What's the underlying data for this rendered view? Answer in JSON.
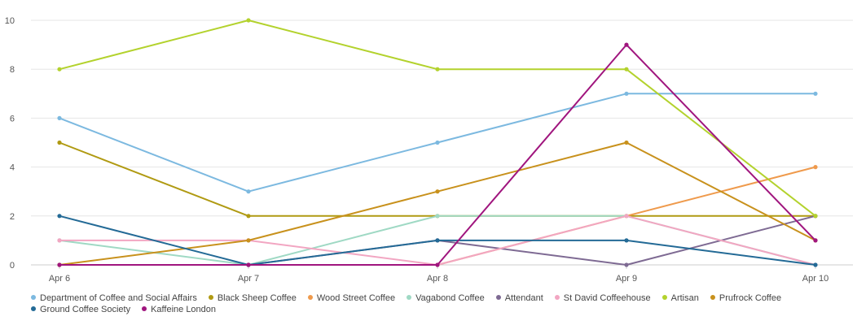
{
  "chart_data": {
    "type": "line",
    "title": "",
    "xlabel": "",
    "ylabel": "",
    "categories": [
      "Apr 6",
      "Apr 7",
      "Apr 8",
      "Apr 9",
      "Apr 10"
    ],
    "ylim": [
      0,
      10
    ],
    "yticks": [
      0,
      2,
      4,
      6,
      8,
      10
    ],
    "grid": true,
    "legend_position": "bottom",
    "series": [
      {
        "name": "Department of Coffee and Social Affairs",
        "color": "#7cb9e0",
        "values": [
          6,
          3,
          5,
          7,
          7
        ]
      },
      {
        "name": "Black Sheep Coffee",
        "color": "#b09a12",
        "values": [
          5,
          2,
          2,
          2,
          2
        ]
      },
      {
        "name": "Wood Street Coffee",
        "color": "#ef9a4c",
        "values": [
          0,
          0,
          0,
          2,
          4
        ]
      },
      {
        "name": "Vagabond Coffee",
        "color": "#9fd9c4",
        "values": [
          1,
          0,
          2,
          2,
          0
        ]
      },
      {
        "name": "Attendant",
        "color": "#7e6a93",
        "values": [
          0,
          0,
          1,
          0,
          2
        ]
      },
      {
        "name": "St David Coffeehouse",
        "color": "#f2a6c2",
        "values": [
          1,
          1,
          0,
          2,
          0
        ]
      },
      {
        "name": "Artisan",
        "color": "#b3d22d",
        "values": [
          8,
          10,
          8,
          8,
          2
        ]
      },
      {
        "name": "Prufrock Coffee",
        "color": "#c8911c",
        "values": [
          0,
          1,
          3,
          5,
          1
        ]
      },
      {
        "name": "Ground Coffee Society",
        "color": "#236a96",
        "values": [
          2,
          0,
          1,
          1,
          0
        ]
      },
      {
        "name": "Kaffeine London",
        "color": "#a0157e",
        "values": [
          0,
          0,
          0,
          9,
          1
        ]
      }
    ]
  }
}
